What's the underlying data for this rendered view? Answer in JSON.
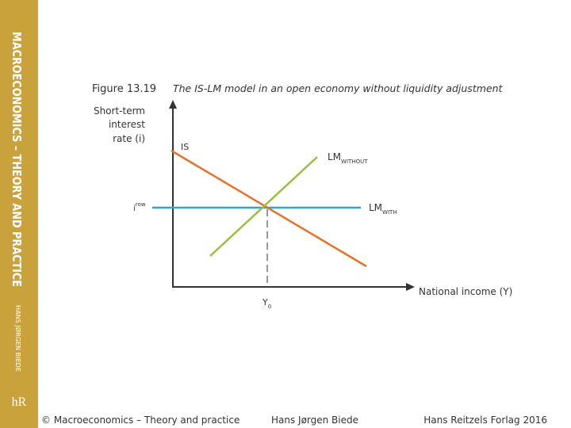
{
  "sidebar": {
    "title": "MACROECONOMICS – THEORY AND PRACTICE",
    "author": "HANS JØRGEN BIEDE",
    "logo": "hR"
  },
  "figure": {
    "number": "Figure 13.19",
    "title": "The IS-LM model in an open economy without liquidity adjustment",
    "y_axis_label": [
      "Short-term",
      "interest",
      "rate (i)"
    ],
    "x_axis_label": "National income (Y)",
    "curves": {
      "is": "IS",
      "lm_without": {
        "main": "LM",
        "sub": "WITHOUT"
      },
      "lm_with": {
        "main": "LM",
        "sub": "WITH"
      }
    },
    "i_row": {
      "main": "i",
      "sup": "row"
    },
    "y0": {
      "main": "Y",
      "sub": "0"
    }
  },
  "footer": {
    "copyright": "© Macroeconomics – Theory and practice",
    "author": "Hans Jørgen Biede",
    "publisher": "Hans Reitzels Forlag 2016"
  }
}
